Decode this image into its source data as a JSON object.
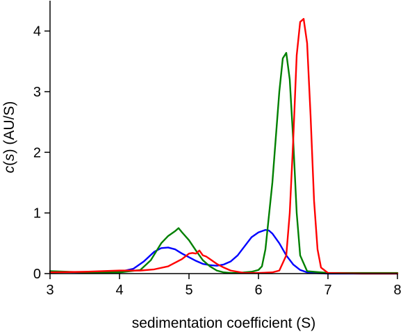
{
  "chart_data": {
    "type": "line",
    "title": "",
    "xlabel": "sedimentation coefficient (S)",
    "ylabel_italic": "c",
    "ylabel_open": "(",
    "ylabel_var": "s",
    "ylabel_rest": ") (AU/S)",
    "xlim": [
      3,
      8
    ],
    "ylim": [
      0,
      4.5
    ],
    "xticks": [
      3,
      4,
      5,
      6,
      7,
      8
    ],
    "yticks": [
      0,
      1,
      2,
      3,
      4
    ],
    "grid": false,
    "legend": "none",
    "series": [
      {
        "color": "#0000ff",
        "x": [
          3.0,
          3.5,
          4.0,
          4.2,
          4.35,
          4.5,
          4.6,
          4.7,
          4.8,
          4.9,
          5.0,
          5.1,
          5.2,
          5.3,
          5.4,
          5.5,
          5.6,
          5.7,
          5.8,
          5.9,
          6.0,
          6.1,
          6.15,
          6.2,
          6.3,
          6.4,
          6.5,
          6.6,
          6.7,
          6.8,
          7.0,
          7.5,
          8.0
        ],
        "y": [
          0.03,
          0.02,
          0.03,
          0.08,
          0.2,
          0.36,
          0.42,
          0.43,
          0.4,
          0.33,
          0.27,
          0.21,
          0.16,
          0.14,
          0.13,
          0.15,
          0.2,
          0.3,
          0.45,
          0.6,
          0.68,
          0.72,
          0.71,
          0.66,
          0.5,
          0.3,
          0.15,
          0.06,
          0.02,
          0.01,
          0.0,
          0.0,
          0.0
        ]
      },
      {
        "color": "#008000",
        "x": [
          3.0,
          3.5,
          4.0,
          4.3,
          4.45,
          4.6,
          4.7,
          4.8,
          4.85,
          4.9,
          5.0,
          5.1,
          5.2,
          5.3,
          5.4,
          5.5,
          5.6,
          5.7,
          5.8,
          5.9,
          6.0,
          6.05,
          6.1,
          6.2,
          6.3,
          6.35,
          6.4,
          6.45,
          6.5,
          6.55,
          6.6,
          6.7,
          7.0,
          7.5,
          8.0
        ],
        "y": [
          0.04,
          0.02,
          0.02,
          0.06,
          0.22,
          0.5,
          0.62,
          0.7,
          0.75,
          0.68,
          0.55,
          0.38,
          0.22,
          0.12,
          0.05,
          0.02,
          0.01,
          0.01,
          0.02,
          0.03,
          0.06,
          0.12,
          0.4,
          1.5,
          3.0,
          3.55,
          3.64,
          3.2,
          2.2,
          1.0,
          0.3,
          0.04,
          0.01,
          0.01,
          0.01
        ]
      },
      {
        "color": "#ff0000",
        "x": [
          3.0,
          3.5,
          4.0,
          4.3,
          4.5,
          4.7,
          4.9,
          5.0,
          5.05,
          5.1,
          5.15,
          5.2,
          5.25,
          5.3,
          5.4,
          5.5,
          5.6,
          5.8,
          6.0,
          6.2,
          6.3,
          6.4,
          6.45,
          6.5,
          6.55,
          6.6,
          6.65,
          6.7,
          6.75,
          6.8,
          6.85,
          6.9,
          7.0,
          7.5,
          8.0
        ],
        "y": [
          0.02,
          0.03,
          0.05,
          0.05,
          0.07,
          0.12,
          0.24,
          0.33,
          0.34,
          0.33,
          0.38,
          0.3,
          0.28,
          0.24,
          0.16,
          0.1,
          0.05,
          0.01,
          0.01,
          0.02,
          0.05,
          0.3,
          1.0,
          2.2,
          3.6,
          4.15,
          4.2,
          3.8,
          2.6,
          1.2,
          0.4,
          0.1,
          0.01,
          0.0,
          0.0
        ]
      }
    ]
  }
}
